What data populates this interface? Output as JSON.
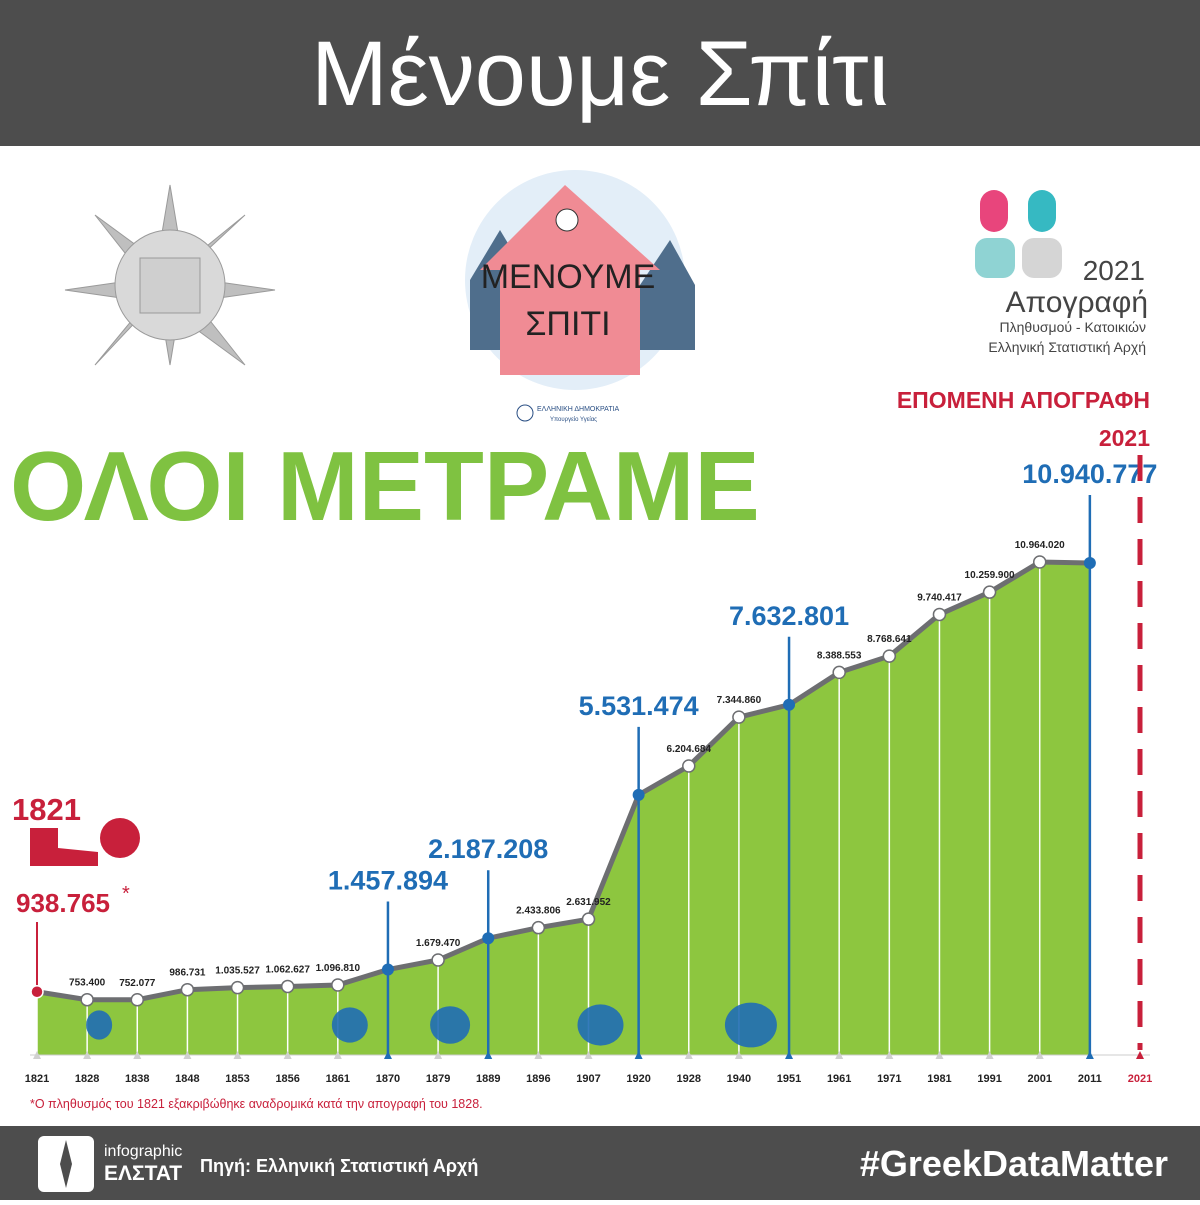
{
  "header": {
    "title": "Μένουμε Σπίτι"
  },
  "logos": {
    "house_line1": "ΜΕΝΟΥΜΕ",
    "house_line2": "ΣΠΙΤΙ",
    "ministry_line1": "ΕΛΛΗΝΙΚΗ ΔΗΜΟΚΡΑΤΙΑ",
    "ministry_line2": "Υπουργείο Υγείας",
    "census_year": "2021",
    "census_title": "Απογραφή",
    "census_line1": "Πληθυσμού - Κατοικιών",
    "census_line2": "Ελληνική Στατιστική Αρχή"
  },
  "headline": "ΟΛΟΙ ΜΕΤΡΑΜΕ",
  "chart_data": {
    "type": "area",
    "categories": [
      "1821",
      "1828",
      "1838",
      "1848",
      "1853",
      "1856",
      "1861",
      "1870",
      "1879",
      "1889",
      "1896",
      "1907",
      "1920",
      "1928",
      "1940",
      "1951",
      "1961",
      "1971",
      "1981",
      "1991",
      "2001",
      "2011",
      "2021"
    ],
    "values": [
      938765,
      753400,
      752077,
      986731,
      1035527,
      1062627,
      1096810,
      1457894,
      1679470,
      2187208,
      2433806,
      2631952,
      5531474,
      6204684,
      7344860,
      7632801,
      8388553,
      8768641,
      9740417,
      10259900,
      10964020,
      10940777,
      null
    ],
    "value_labels": [
      "938.765",
      "753.400",
      "752.077",
      "986.731",
      "1.035.527",
      "1.062.627",
      "1.096.810",
      "1.457.894",
      "1.679.470",
      "2.187.208",
      "2.433.806",
      "2.631.952",
      "5.531.474",
      "6.204.684",
      "7.344.860",
      "7.632.801",
      "8.388.553",
      "8.768.641",
      "9.740.417",
      "10.259.900",
      "10.964.020",
      "10.940.777",
      null
    ],
    "first_label_note_mark": "*",
    "highlighted": [
      "1870",
      "1889",
      "1920",
      "1951",
      "2011"
    ],
    "color": "#8dc63f",
    "line_color": "#6d6e71",
    "highlight_color": "#1f6db5",
    "accent_color": "#c8203b",
    "next_census_label": "ΕΠΟΜΕΝΗ ΑΠΟΓΡΑΦΗ",
    "next_census_year": "2021"
  },
  "footnote": "*Ο πληθυσμός του 1821 εξακριβώθηκε αναδρομικά κατά την απογραφή του 1828.",
  "footer": {
    "brand_line1": "infographic",
    "brand_line2": "ΕΛΣΤΑΤ",
    "source": "Πηγή: Ελληνική Στατιστική Αρχή",
    "hashtag": "#GreekDataMatter"
  }
}
